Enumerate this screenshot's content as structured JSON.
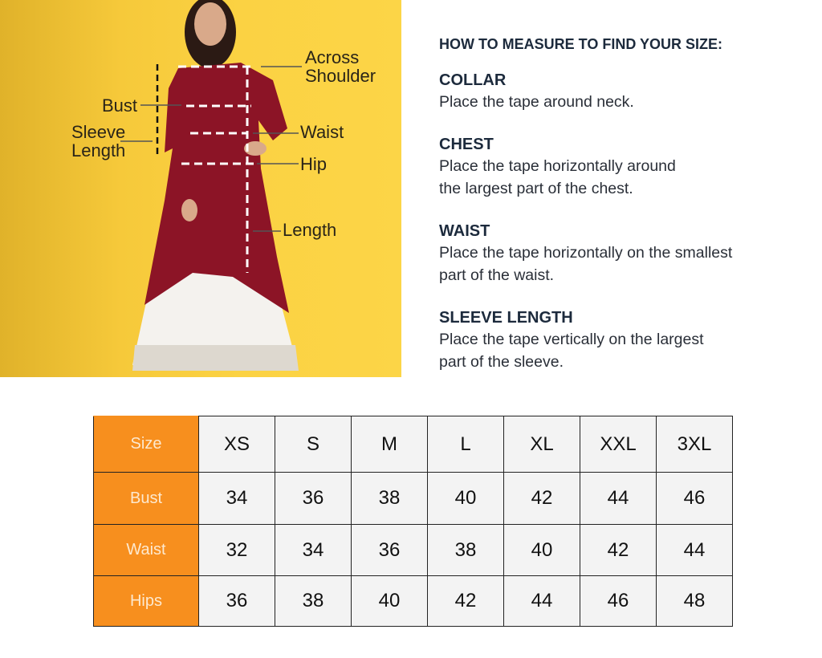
{
  "figure": {
    "labels": {
      "across_shoulder": "Across\nShoulder",
      "across": "Across",
      "shoulder": "Shoulder",
      "bust": "Bust",
      "sleeve": "Sleeve",
      "length_word": "Length",
      "waist": "Waist",
      "hip": "Hip",
      "length": "Length"
    },
    "background_color": "#fbd243",
    "garment_color": "#8c1426"
  },
  "guide": {
    "title": "HOW TO MEASURE TO FIND YOUR SIZE:",
    "sections": [
      {
        "heading": "COLLAR",
        "lines": [
          "Place the tape around neck."
        ]
      },
      {
        "heading": "CHEST",
        "lines": [
          "Place the tape horizontally around",
          "the largest part of the chest."
        ]
      },
      {
        "heading": "WAIST",
        "lines": [
          "Place the tape horizontally on the smallest",
          "part of the waist."
        ]
      },
      {
        "heading": "SLEEVE LENGTH",
        "lines": [
          "Place the tape vertically on the largest",
          "part of the sleeve."
        ]
      }
    ]
  },
  "size_table": {
    "header_color": "#f78f1e",
    "rows": [
      {
        "label": "Size",
        "values": [
          "XS",
          "S",
          "M",
          "L",
          "XL",
          "XXL",
          "3XL"
        ]
      },
      {
        "label": "Bust",
        "values": [
          "34",
          "36",
          "38",
          "40",
          "42",
          "44",
          "46"
        ]
      },
      {
        "label": "Waist",
        "values": [
          "32",
          "34",
          "36",
          "38",
          "40",
          "42",
          "44"
        ]
      },
      {
        "label": "Hips",
        "values": [
          "36",
          "38",
          "40",
          "42",
          "44",
          "46",
          "48"
        ]
      }
    ]
  }
}
